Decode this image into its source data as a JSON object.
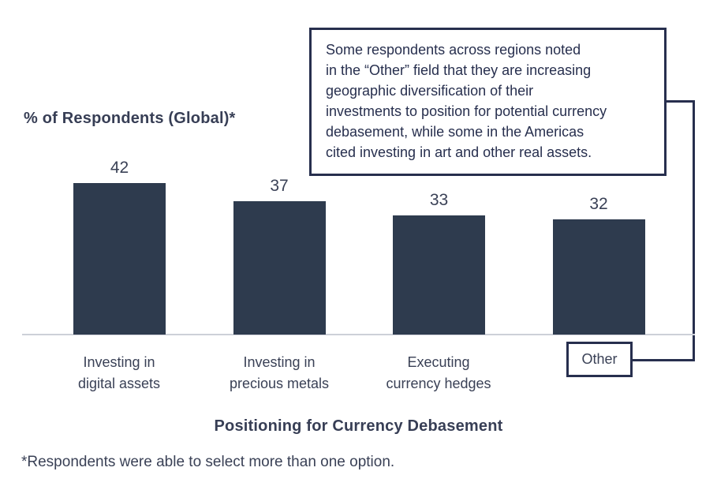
{
  "title": "% of Respondents (Global)*",
  "axis_title": "Positioning for Currency Debasement",
  "footnote": "*Respondents were able to select more than one option.",
  "other_label": "Other",
  "callout": {
    "lines": [
      "Some respondents across regions noted",
      "in the “Other” field that they are increasing",
      "geographic diversification of their",
      "investments to position for potential currency",
      "debasement, while some in the Americas",
      "cited investing in art and other real assets."
    ]
  },
  "category_labels": [
    {
      "line1": "Investing in",
      "line2": "digital assets"
    },
    {
      "line1": "Investing in",
      "line2": "precious metals"
    },
    {
      "line1": "Executing",
      "line2": "currency hedges"
    },
    {
      "line1": "Other",
      "line2": ""
    }
  ],
  "colors": {
    "bar": "#2E3B4E",
    "text": "#3A4156",
    "navy": "#272F4E",
    "axis_line": "#CDD0D8"
  },
  "chart_data": {
    "type": "bar",
    "categories": [
      "Investing in digital assets",
      "Investing in precious metals",
      "Executing currency hedges",
      "Other"
    ],
    "values": [
      42,
      37,
      33,
      32
    ],
    "title": "% of Respondents (Global)*",
    "xlabel": "Positioning for Currency Debasement",
    "ylabel": "% of Respondents (Global)",
    "ylim": [
      0,
      46
    ],
    "grid": false,
    "legend": "none",
    "bar_color": "#2E3B4E",
    "value_labels_shown": true,
    "annotation": "Some respondents across regions noted in the “Other” field that they are increasing geographic diversification of their investments to position for potential currency debasement, while some in the Americas cited investing in art and other real assets."
  }
}
